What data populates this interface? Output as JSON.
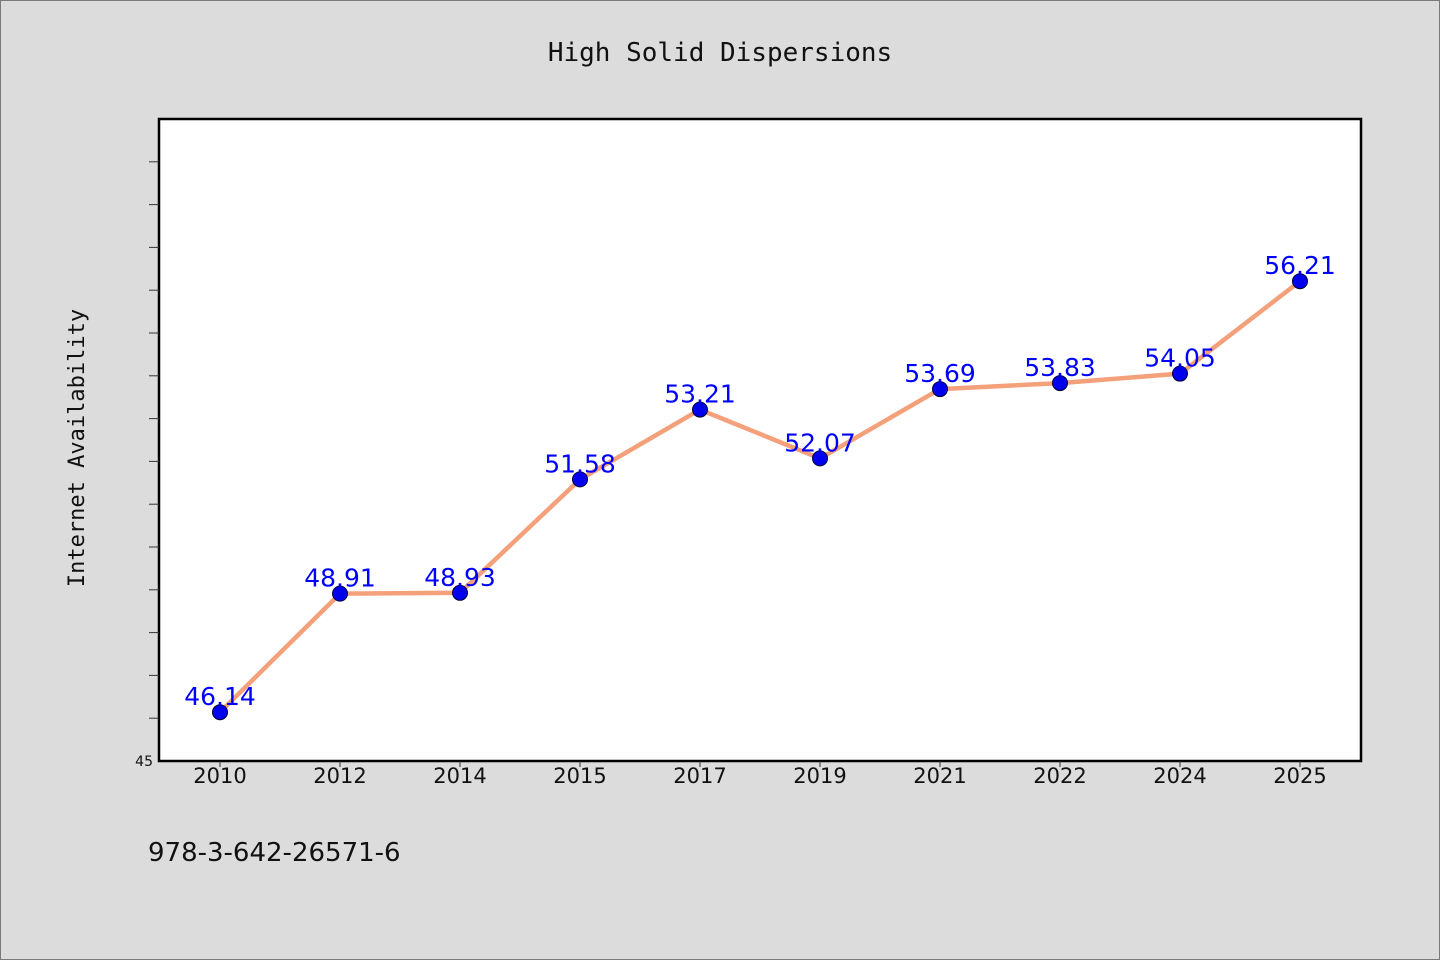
{
  "chart_data": {
    "type": "line",
    "title": "High Solid Dispersions",
    "xlabel": "",
    "ylabel": "Internet Availability",
    "categories": [
      "2010",
      "2012",
      "2014",
      "2015",
      "2017",
      "2019",
      "2021",
      "2022",
      "2024",
      "2025"
    ],
    "series": [
      {
        "values": [
          46.14,
          48.91,
          48.93,
          51.58,
          53.21,
          52.07,
          53.69,
          53.83,
          54.05,
          56.21
        ],
        "labels": [
          "46.14",
          "48.91",
          "48.93",
          "51.58",
          "53.21",
          "52.07",
          "53.69",
          "53.83",
          "54.05",
          "56.21"
        ],
        "line_color": "#f4a07a",
        "marker_color": "#0000ee"
      }
    ],
    "ylim": [
      45,
      60
    ],
    "y_tick_labels": [
      "45"
    ],
    "y_minor_step": 1,
    "grid": false,
    "label_color": "#0000ff"
  },
  "footer_text": "978-3-642-26571-6"
}
